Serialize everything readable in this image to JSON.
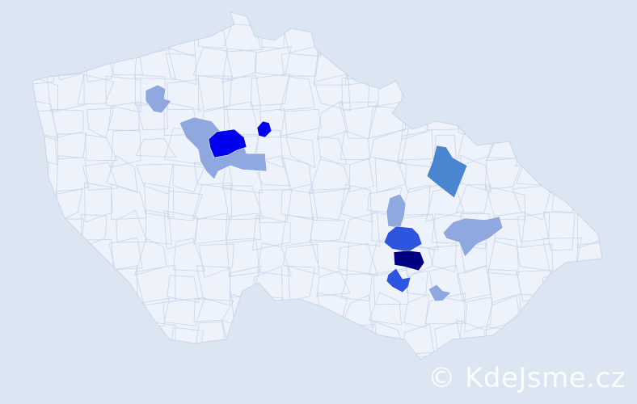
{
  "map": {
    "country_fill": "#eef2fa",
    "border_color": "#c9d4ea",
    "background": "#dce6f2",
    "regions": [
      {
        "id": "r1",
        "level": 1,
        "color": "#8fa8e0"
      },
      {
        "id": "r2",
        "level": 1,
        "color": "#8fa8e0"
      },
      {
        "id": "r3",
        "level": 4,
        "color": "#0000ee"
      },
      {
        "id": "r4",
        "level": 4,
        "color": "#0000ee"
      },
      {
        "id": "r5",
        "level": 2,
        "color": "#4a86d0"
      },
      {
        "id": "r6",
        "level": 1,
        "color": "#8fa8e0"
      },
      {
        "id": "r7",
        "level": 1,
        "color": "#8fa8e0"
      },
      {
        "id": "r8",
        "level": 3,
        "color": "#2e55e0"
      },
      {
        "id": "r9",
        "level": 5,
        "color": "#000080"
      },
      {
        "id": "r10",
        "level": 3,
        "color": "#2e55e0"
      },
      {
        "id": "r11",
        "level": 1,
        "color": "#8fa8e0"
      }
    ]
  },
  "watermark": "© KdeJsme.cz"
}
